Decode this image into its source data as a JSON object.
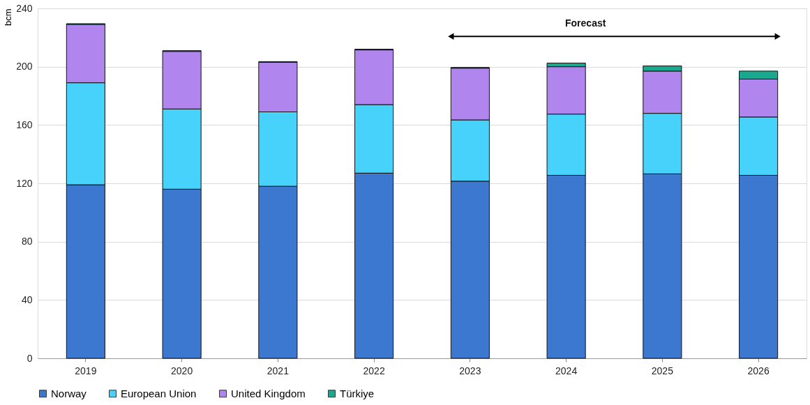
{
  "chart_data": {
    "type": "bar",
    "stacked": true,
    "ylabel": "bcm",
    "categories": [
      "2019",
      "2020",
      "2021",
      "2022",
      "2023",
      "2024",
      "2025",
      "2026"
    ],
    "series": [
      {
        "name": "Norway",
        "color": "#3c78d0",
        "values": [
          119,
          116,
          118,
          127,
          121.5,
          125.5,
          126.5,
          125.5
        ]
      },
      {
        "name": "European Union",
        "color": "#46d2fa",
        "values": [
          70,
          55,
          51,
          47,
          42,
          42,
          41.5,
          40
        ]
      },
      {
        "name": "United Kingdom",
        "color": "#b085ee",
        "values": [
          40,
          39.5,
          34,
          37.5,
          35.5,
          32.5,
          29,
          26
        ]
      },
      {
        "name": "Türkiye",
        "color": "#1aa98f",
        "values": [
          0.5,
          0.5,
          0.5,
          0.5,
          0.5,
          2.5,
          3.5,
          5.5
        ]
      }
    ],
    "ylim": [
      0,
      240
    ],
    "yticks": [
      0,
      40,
      80,
      120,
      160,
      200,
      240
    ],
    "grid": "y",
    "legend": "bottom",
    "annotations": [
      "Forecast"
    ]
  }
}
